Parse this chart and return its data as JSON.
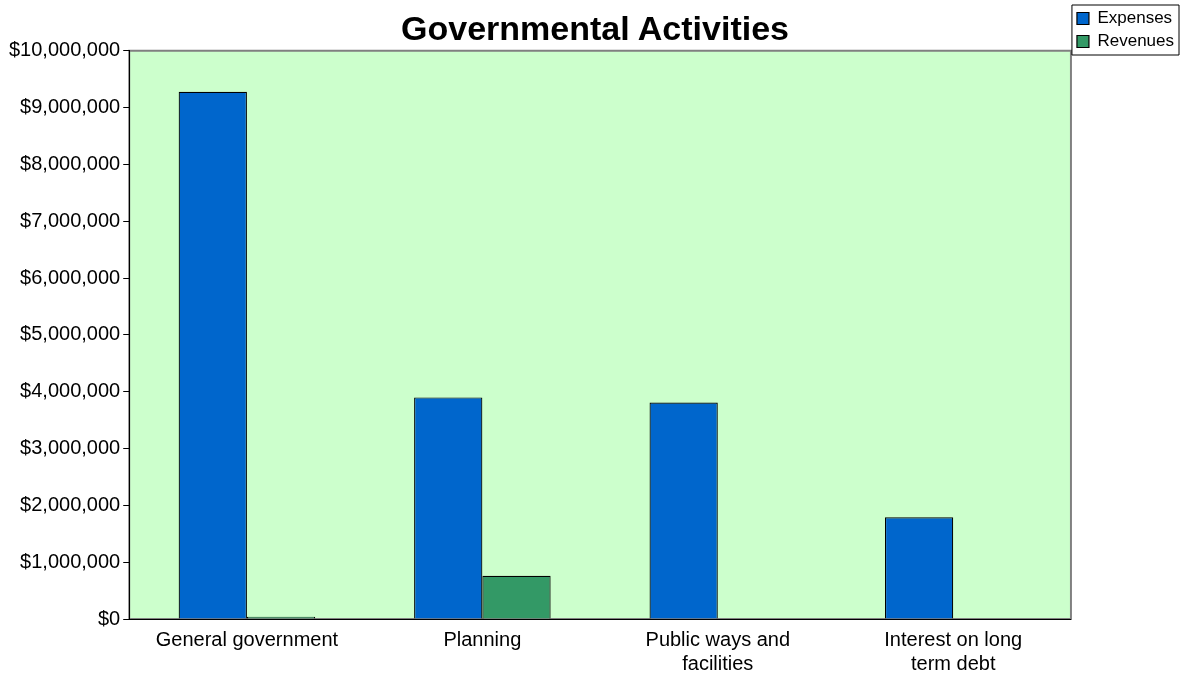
{
  "chart_data": {
    "type": "bar",
    "title": "Governmental Activities",
    "categories": [
      "General government",
      "Planning",
      "Public ways and facilities",
      "Interest on long term debt"
    ],
    "series": [
      {
        "name": "Expenses",
        "color": "#0066cc",
        "values": [
          9280000,
          3900000,
          3810000,
          1790000
        ]
      },
      {
        "name": "Revenues",
        "color": "#339966",
        "values": [
          40000,
          760000,
          0,
          0
        ]
      }
    ],
    "ylim": [
      0,
      10000000
    ],
    "yticks": [
      {
        "value": 0,
        "label": "$0"
      },
      {
        "value": 1000000,
        "label": "$1,000,000"
      },
      {
        "value": 2000000,
        "label": "$2,000,000"
      },
      {
        "value": 3000000,
        "label": "$3,000,000"
      },
      {
        "value": 4000000,
        "label": "$4,000,000"
      },
      {
        "value": 5000000,
        "label": "$5,000,000"
      },
      {
        "value": 6000000,
        "label": "$6,000,000"
      },
      {
        "value": 7000000,
        "label": "$7,000,000"
      },
      {
        "value": 8000000,
        "label": "$8,000,000"
      },
      {
        "value": 9000000,
        "label": "$9,000,000"
      },
      {
        "value": 10000000,
        "label": "$10,000,000"
      }
    ],
    "grid": false,
    "legend": "top right"
  }
}
